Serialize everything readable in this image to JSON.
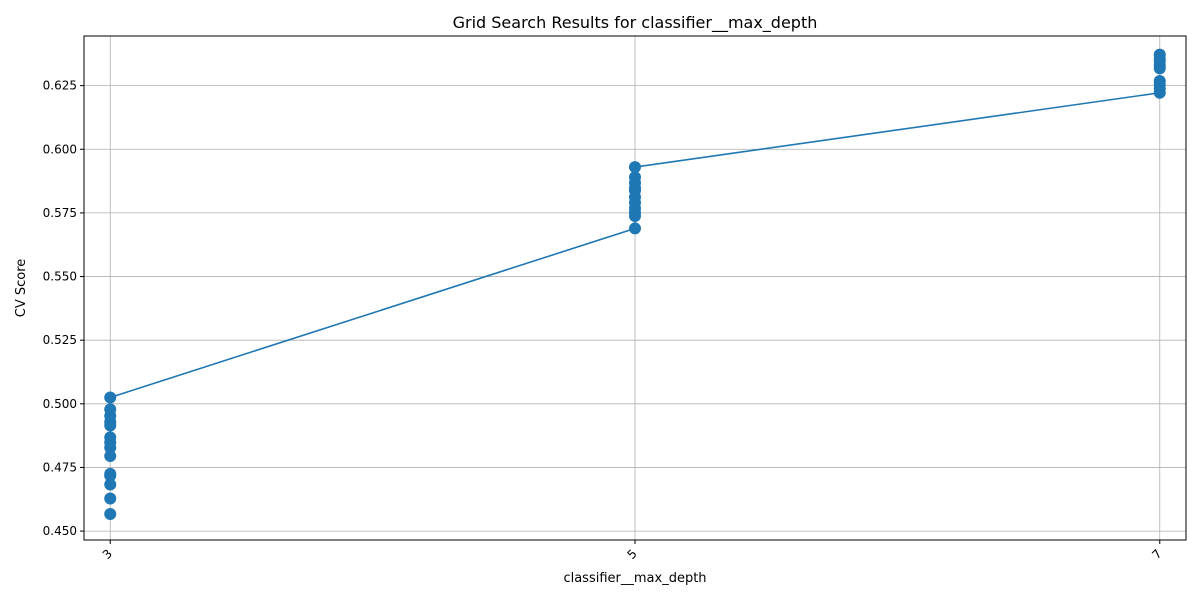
{
  "chart_data": {
    "type": "scatter",
    "title": "Grid Search Results for classifier__max_depth",
    "xlabel": "classifier__max_depth",
    "ylabel": "CV Score",
    "x_ticks": [
      "3",
      "5",
      "7"
    ],
    "y_ticks": [
      "0.450",
      "0.475",
      "0.500",
      "0.525",
      "0.550",
      "0.575",
      "0.600",
      "0.625"
    ],
    "ylim": [
      0.4465,
      0.6445
    ],
    "grid": true,
    "color": "#1f77b4",
    "series": [
      {
        "x": 3,
        "scores": [
          0.4567,
          0.4628,
          0.4683,
          0.4718,
          0.4725,
          0.4795,
          0.4828,
          0.4848,
          0.4868,
          0.4915,
          0.4928,
          0.4952,
          0.4978,
          0.5025
        ]
      },
      {
        "x": 5,
        "scores": [
          0.5689,
          0.5738,
          0.5752,
          0.5768,
          0.579,
          0.5812,
          0.5838,
          0.5848,
          0.5868,
          0.589,
          0.593
        ]
      },
      {
        "x": 7,
        "scores": [
          0.6222,
          0.6238,
          0.6255,
          0.6268,
          0.6318,
          0.633,
          0.6345,
          0.6355,
          0.6372
        ]
      }
    ],
    "line": [
      {
        "x": 3,
        "y": 0.5025
      },
      {
        "x": 5,
        "y": 0.5689
      },
      {
        "x": 5,
        "y": 0.593
      },
      {
        "x": 7,
        "y": 0.6222
      }
    ]
  }
}
